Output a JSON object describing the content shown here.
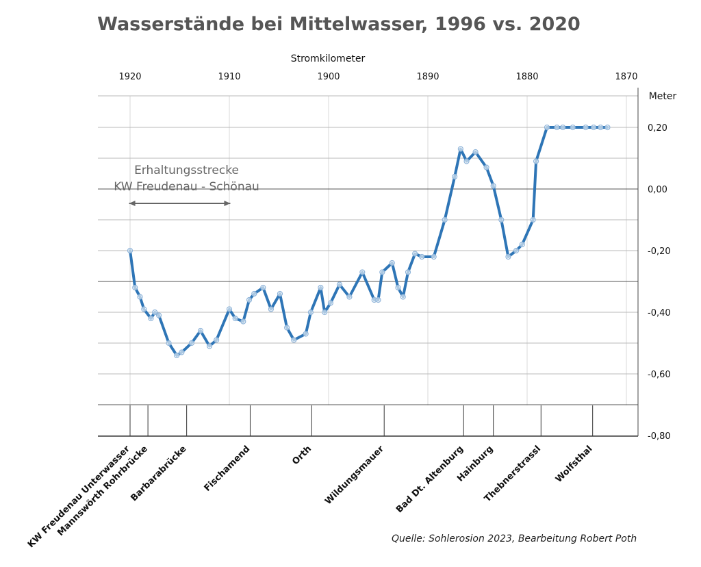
{
  "chart_data": {
    "type": "line",
    "title": "Wasserstände bei Mittelwasser, 1996 vs. 2020",
    "x_axis_top_label": "Stromkilometer",
    "y_axis_right_label": "Meter",
    "x_ticks": [
      1920,
      1910,
      1900,
      1890,
      1880,
      1870
    ],
    "x_tick_labels": [
      "1920",
      "1910",
      "1900",
      "1890",
      "1880",
      "1870"
    ],
    "xlim": [
      1921,
      1870
    ],
    "y_ticks": [
      0.2,
      0.0,
      -0.2,
      -0.4,
      -0.6,
      -0.8
    ],
    "y_tick_labels": [
      "0,20",
      "0,00",
      "-0,20",
      "-0,40",
      "-0,60",
      "-0,80"
    ],
    "ylim": [
      -0.8,
      0.2
    ],
    "annotation": {
      "lines": [
        "Erhaltungsstrecke",
        "KW Freudenau - Schönau"
      ],
      "x_from": 1920.1,
      "x_to": 1909.9
    },
    "locations": [
      {
        "name": "KW Freudenau Unterwasser",
        "km": 1920.0
      },
      {
        "name": "Mannswörth Rohrbrücke",
        "km": 1918.2
      },
      {
        "name": "Barbarabrücke",
        "km": 1914.3
      },
      {
        "name": "Fischamend",
        "km": 1907.9
      },
      {
        "name": "Orth",
        "km": 1901.7
      },
      {
        "name": "Wildungsmauer",
        "km": 1894.4
      },
      {
        "name": "Bad Dt. Altenburg",
        "km": 1886.4
      },
      {
        "name": "Hainburg",
        "km": 1883.4
      },
      {
        "name": "Thebnerstrassl",
        "km": 1878.6
      },
      {
        "name": "Wolfsthal",
        "km": 1873.4
      }
    ],
    "series": [
      {
        "color": "#2e75b6",
        "x": [
          1920.0,
          1919.5,
          1919.0,
          1918.6,
          1917.9,
          1917.5,
          1917.1,
          1916.1,
          1915.3,
          1914.8,
          1913.8,
          1912.9,
          1912.0,
          1911.3,
          1910.0,
          1909.4,
          1908.6,
          1908.0,
          1907.5,
          1906.6,
          1905.8,
          1904.9,
          1904.2,
          1903.5,
          1902.3,
          1901.8,
          1900.8,
          1900.4,
          1899.8,
          1898.9,
          1897.9,
          1896.6,
          1895.4,
          1895.0,
          1894.6,
          1893.6,
          1893.0,
          1892.5,
          1892.0,
          1891.3,
          1890.6,
          1889.4,
          1888.3,
          1887.3,
          1886.7,
          1886.1,
          1885.2,
          1884.1,
          1883.4,
          1882.6,
          1881.9,
          1881.1,
          1880.5,
          1879.4,
          1879.1,
          1878.0,
          1877.0,
          1876.4,
          1875.4,
          1874.1,
          1873.3,
          1872.6,
          1871.9
        ],
        "values": [
          -0.2,
          -0.32,
          -0.35,
          -0.39,
          -0.42,
          -0.4,
          -0.41,
          -0.5,
          -0.54,
          -0.53,
          -0.5,
          -0.46,
          -0.51,
          -0.49,
          -0.39,
          -0.42,
          -0.43,
          -0.36,
          -0.34,
          -0.32,
          -0.39,
          -0.34,
          -0.45,
          -0.49,
          -0.47,
          -0.4,
          -0.32,
          -0.4,
          -0.37,
          -0.31,
          -0.35,
          -0.27,
          -0.36,
          -0.36,
          -0.27,
          -0.24,
          -0.32,
          -0.35,
          -0.27,
          -0.21,
          -0.22,
          -0.22,
          -0.1,
          0.04,
          0.13,
          0.09,
          0.12,
          0.07,
          0.01,
          -0.1,
          -0.22,
          -0.2,
          -0.18,
          -0.1,
          0.09,
          0.2,
          0.2,
          0.2,
          0.2,
          0.2,
          0.2,
          0.2,
          0.2
        ]
      }
    ],
    "source": "Quelle: Sohlerosion 2023, Bearbeitung Robert Poth",
    "grid": true
  }
}
